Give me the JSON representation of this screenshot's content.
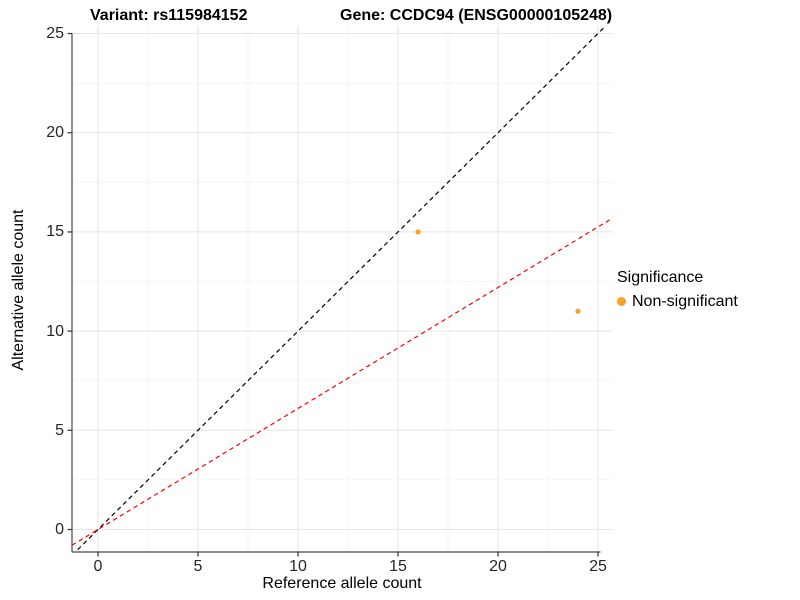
{
  "title": {
    "variant": "Variant: rs115984152",
    "gene": "Gene: CCDC94 (ENSG00000105248)"
  },
  "legend": {
    "title": "Significance",
    "items": [
      {
        "label": "Non-significant",
        "color": "#F9A125"
      }
    ]
  },
  "chart_data": {
    "type": "scatter",
    "title": "Variant: rs115984152   Gene: CCDC94 (ENSG00000105248)",
    "xlabel": "Reference allele count",
    "ylabel": "Alternative allele count",
    "xlim": [
      -1.3,
      25.75
    ],
    "ylim": [
      -1.134,
      25.38
    ],
    "x_ticks": [
      0,
      5,
      10,
      15,
      20,
      25
    ],
    "y_ticks": [
      0,
      5,
      10,
      15,
      20,
      25
    ],
    "grid": "major+minor",
    "legend_position": "right",
    "series": [
      {
        "name": "Non-significant",
        "color": "#F9A125",
        "points": [
          {
            "x": 16,
            "y": 15
          },
          {
            "x": 24,
            "y": 11
          }
        ]
      }
    ],
    "reference_lines": [
      {
        "name": "identity",
        "slope": 1.0,
        "intercept": 0,
        "color": "#000000",
        "style": "dashed"
      },
      {
        "name": "fit",
        "slope": 0.61,
        "intercept": 0,
        "color": "#FF0000",
        "style": "dashed"
      }
    ],
    "style": {
      "grid_major_color": "#E5E5E5",
      "grid_minor_color": "#F2F2F2",
      "axis_line_color": "#474747",
      "tick_color": "#333333",
      "tick_label_color": "#262626"
    }
  }
}
